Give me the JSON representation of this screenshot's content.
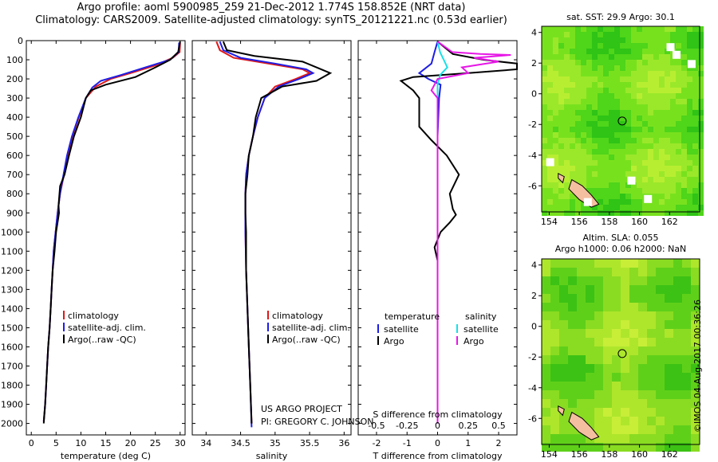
{
  "titles": {
    "line1": "Argo profile: aoml 5900985_259 21-Dec-2012 1.774S 158.852E (NRT data)",
    "line2": "Climatology: CARS2009. Satellite-adjusted climatology: synTS_20121221.nc (0.53d earlier)"
  },
  "side_text": "©IMOS 04-Aug-2017 00:36:26",
  "colors": {
    "climatology": "#e01818",
    "satellite": "#1e1ee6",
    "argo": "#000000",
    "sal_satellite": "#18e0e6",
    "sal_argo": "#e618e6"
  },
  "chart_data": [
    {
      "type": "line",
      "id": "temperature",
      "xlabel": "temperature (deg C)",
      "ylabel": "",
      "xlim": [
        -1,
        31
      ],
      "ylim": [
        2060,
        0
      ],
      "xticks": [
        0,
        5,
        10,
        15,
        20,
        25,
        30
      ],
      "yticks": [
        0,
        100,
        200,
        300,
        400,
        500,
        600,
        700,
        800,
        900,
        1000,
        1100,
        1200,
        1300,
        1400,
        1500,
        1600,
        1700,
        1800,
        1900,
        2000
      ],
      "legend": [
        "climatology",
        "satellite-adj. clim.",
        "Argo(..raw -QC)"
      ],
      "series": [
        {
          "name": "climatology",
          "color": "red",
          "points": [
            [
              30,
              10
            ],
            [
              29.9,
              60
            ],
            [
              28.5,
              90
            ],
            [
              25,
              130
            ],
            [
              20,
              170
            ],
            [
              16,
              200
            ],
            [
              13,
              240
            ],
            [
              11,
              300
            ],
            [
              9.6,
              400
            ],
            [
              8.3,
              500
            ],
            [
              7.3,
              600
            ],
            [
              6.6,
              700
            ],
            [
              5.8,
              800
            ],
            [
              5.3,
              900
            ],
            [
              4.9,
              1000
            ],
            [
              4.5,
              1100
            ],
            [
              4.3,
              1200
            ],
            [
              4.1,
              1300
            ],
            [
              3.9,
              1400
            ],
            [
              3.7,
              1500
            ],
            [
              3.4,
              1600
            ],
            [
              3.2,
              1700
            ],
            [
              3,
              1800
            ],
            [
              2.8,
              1900
            ],
            [
              2.5,
              1990
            ]
          ]
        },
        {
          "name": "satellite-adj. clim.",
          "color": "blue",
          "points": [
            [
              29.8,
              10
            ],
            [
              29.7,
              60
            ],
            [
              28,
              100
            ],
            [
              23,
              140
            ],
            [
              18,
              180
            ],
            [
              14,
              210
            ],
            [
              12.3,
              245
            ],
            [
              11,
              300
            ],
            [
              9.5,
              400
            ],
            [
              8.2,
              500
            ],
            [
              7.2,
              600
            ],
            [
              6.5,
              700
            ],
            [
              5.8,
              800
            ],
            [
              5.3,
              900
            ],
            [
              4.9,
              1000
            ],
            [
              4.5,
              1100
            ],
            [
              4.3,
              1200
            ],
            [
              4.1,
              1300
            ],
            [
              3.9,
              1400
            ],
            [
              3.7,
              1500
            ],
            [
              3.4,
              1600
            ],
            [
              3.2,
              1700
            ],
            [
              3,
              1800
            ],
            [
              2.8,
              1900
            ],
            [
              2.5,
              1990
            ]
          ]
        },
        {
          "name": "Argo(..raw -QC)",
          "color": "black",
          "points": [
            [
              30,
              5
            ],
            [
              29.6,
              60
            ],
            [
              28,
              100
            ],
            [
              25,
              140
            ],
            [
              21,
              190
            ],
            [
              15,
              230
            ],
            [
              12,
              260
            ],
            [
              11,
              300
            ],
            [
              10,
              400
            ],
            [
              8.6,
              500
            ],
            [
              7.6,
              600
            ],
            [
              6.7,
              700
            ],
            [
              5.8,
              760
            ],
            [
              5.5,
              860
            ],
            [
              5.6,
              900
            ],
            [
              5,
              1000
            ],
            [
              4.7,
              1100
            ],
            [
              4.3,
              1200
            ],
            [
              4.1,
              1300
            ],
            [
              3.9,
              1400
            ],
            [
              3.7,
              1500
            ],
            [
              3.4,
              1600
            ],
            [
              3.2,
              1700
            ],
            [
              3,
              1800
            ],
            [
              2.8,
              1900
            ],
            [
              2.5,
              2000
            ]
          ]
        }
      ]
    },
    {
      "type": "line",
      "id": "salinity",
      "xlabel": "salinity",
      "xlim": [
        33.8,
        36.1
      ],
      "ylim": [
        2060,
        0
      ],
      "xticks": [
        34,
        34.5,
        35,
        35.5,
        36
      ],
      "legend": [
        "climatology",
        "satellite-adj. clim.",
        "Argo(..raw -QC)"
      ],
      "annotation": [
        "US ARGO PROJECT",
        "PI: GREGORY C. JOHNSON"
      ],
      "series": [
        {
          "name": "climatology",
          "color": "red",
          "points": [
            [
              34.15,
              5
            ],
            [
              34.2,
              50
            ],
            [
              34.4,
              90
            ],
            [
              34.9,
              120
            ],
            [
              35.4,
              150
            ],
            [
              35.5,
              170
            ],
            [
              35.3,
              200
            ],
            [
              35,
              240
            ],
            [
              34.85,
              300
            ],
            [
              34.75,
              400
            ],
            [
              34.68,
              500
            ],
            [
              34.62,
              600
            ],
            [
              34.58,
              700
            ],
            [
              34.57,
              800
            ],
            [
              34.57,
              900
            ],
            [
              34.57,
              1000
            ],
            [
              34.58,
              1200
            ],
            [
              34.6,
              1400
            ],
            [
              34.62,
              1600
            ],
            [
              34.64,
              1800
            ],
            [
              34.66,
              2000
            ]
          ]
        },
        {
          "name": "satellite-adj. clim.",
          "color": "blue",
          "points": [
            [
              34.2,
              5
            ],
            [
              34.25,
              50
            ],
            [
              34.5,
              90
            ],
            [
              35,
              120
            ],
            [
              35.45,
              150
            ],
            [
              35.55,
              170
            ],
            [
              35.35,
              200
            ],
            [
              35.05,
              240
            ],
            [
              34.85,
              300
            ],
            [
              34.75,
              400
            ],
            [
              34.68,
              500
            ],
            [
              34.62,
              600
            ],
            [
              34.58,
              700
            ],
            [
              34.57,
              800
            ],
            [
              34.57,
              900
            ],
            [
              34.57,
              1000
            ],
            [
              34.58,
              1200
            ],
            [
              34.6,
              1400
            ],
            [
              34.62,
              1600
            ],
            [
              34.64,
              1800
            ],
            [
              34.66,
              2020
            ]
          ]
        },
        {
          "name": "Argo(..raw -QC)",
          "color": "black",
          "points": [
            [
              34.25,
              5
            ],
            [
              34.3,
              50
            ],
            [
              34.7,
              80
            ],
            [
              35.4,
              110
            ],
            [
              35.6,
              140
            ],
            [
              35.8,
              170
            ],
            [
              35.6,
              210
            ],
            [
              35.1,
              240
            ],
            [
              34.8,
              300
            ],
            [
              34.72,
              400
            ],
            [
              34.68,
              500
            ],
            [
              34.62,
              600
            ],
            [
              34.6,
              700
            ],
            [
              34.57,
              800
            ],
            [
              34.57,
              900
            ],
            [
              34.58,
              1000
            ],
            [
              34.58,
              1200
            ],
            [
              34.6,
              1400
            ],
            [
              34.62,
              1600
            ],
            [
              34.64,
              1800
            ],
            [
              34.66,
              2000
            ]
          ]
        }
      ]
    },
    {
      "type": "line",
      "id": "difference",
      "xlabel": "T difference from climatology",
      "xlabel2": "S difference from climatology",
      "xlim": [
        -2.6,
        2.6
      ],
      "ylim": [
        2060,
        0
      ],
      "xticks_T": [
        -2,
        -1,
        0,
        1,
        2
      ],
      "xticks_S": [
        -0.5,
        -0.25,
        0,
        0.25,
        0.5
      ],
      "s_scale": 4,
      "legend_left_title": "temperature",
      "legend_right_title": "salinity",
      "legend_left": [
        "satellite",
        "Argo"
      ],
      "legend_right": [
        "satellite",
        "Argo"
      ],
      "series": [
        {
          "name": "T satellite",
          "color": "blue",
          "points": [
            [
              0,
              5
            ],
            [
              -0.1,
              60
            ],
            [
              -0.2,
              120
            ],
            [
              -0.6,
              170
            ],
            [
              -0.3,
              200
            ],
            [
              0.1,
              230
            ],
            [
              0.05,
              300
            ],
            [
              0,
              500
            ],
            [
              0,
              1000
            ],
            [
              0,
              1500
            ],
            [
              0,
              2000
            ]
          ]
        },
        {
          "name": "T Argo",
          "color": "black",
          "points": [
            [
              0,
              5
            ],
            [
              0.5,
              70
            ],
            [
              1.5,
              100
            ],
            [
              2.6,
              120
            ],
            [
              2.6,
              150
            ],
            [
              1,
              170
            ],
            [
              -0.8,
              190
            ],
            [
              -1.2,
              210
            ],
            [
              -0.8,
              260
            ],
            [
              -0.6,
              300
            ],
            [
              -0.6,
              450
            ],
            [
              -0.2,
              520
            ],
            [
              0.3,
              600
            ],
            [
              0.7,
              700
            ],
            [
              0.4,
              800
            ],
            [
              0.5,
              880
            ],
            [
              0.6,
              910
            ],
            [
              0.4,
              950
            ],
            [
              0.1,
              1000
            ],
            [
              -0.1,
              1080
            ],
            [
              0,
              1150
            ],
            [
              0,
              1300
            ],
            [
              0,
              1500
            ],
            [
              0,
              2000
            ]
          ]
        },
        {
          "name": "S satellite",
          "color": "cyan",
          "points": [
            [
              0,
              5
            ],
            [
              0.02,
              60
            ],
            [
              0.05,
              100
            ],
            [
              0.08,
              140
            ],
            [
              0.02,
              180
            ],
            [
              0,
              230
            ],
            [
              0,
              500
            ],
            [
              0,
              1000
            ],
            [
              0,
              1500
            ],
            [
              0,
              2000
            ]
          ]
        },
        {
          "name": "S Argo",
          "color": "magenta",
          "points": [
            [
              0,
              5
            ],
            [
              0.12,
              60
            ],
            [
              0.35,
              70
            ],
            [
              0.6,
              75
            ],
            [
              0.3,
              90
            ],
            [
              0.5,
              110
            ],
            [
              0.2,
              140
            ],
            [
              0.25,
              170
            ],
            [
              0,
              200
            ],
            [
              -0.05,
              260
            ],
            [
              0,
              300
            ],
            [
              0,
              500
            ],
            [
              0,
              1000
            ],
            [
              0,
              2000
            ]
          ]
        }
      ]
    },
    {
      "type": "heatmap",
      "id": "sst-map",
      "title": "sat. SST: 29.9 Argo: 30.1",
      "xticks": [
        154,
        156,
        158,
        160,
        162
      ],
      "yticks": [
        4,
        2,
        0,
        -2,
        -4,
        -6
      ],
      "xlim": [
        153.5,
        164
      ],
      "ylim": [
        -7.7,
        4.4
      ],
      "float_position": [
        158.852,
        -1.774
      ]
    },
    {
      "type": "heatmap",
      "id": "sla-map",
      "title": "Altim. SLA: 0.055",
      "subtitle": "Argo h1000: 0.06 h2000: NaN",
      "xticks": [
        154,
        156,
        158,
        160,
        162
      ],
      "yticks": [
        4,
        2,
        0,
        -2,
        -4,
        -6
      ],
      "xlim": [
        153.5,
        164
      ],
      "ylim": [
        -7.7,
        4.4
      ],
      "float_position": [
        158.852,
        -1.774
      ]
    }
  ]
}
